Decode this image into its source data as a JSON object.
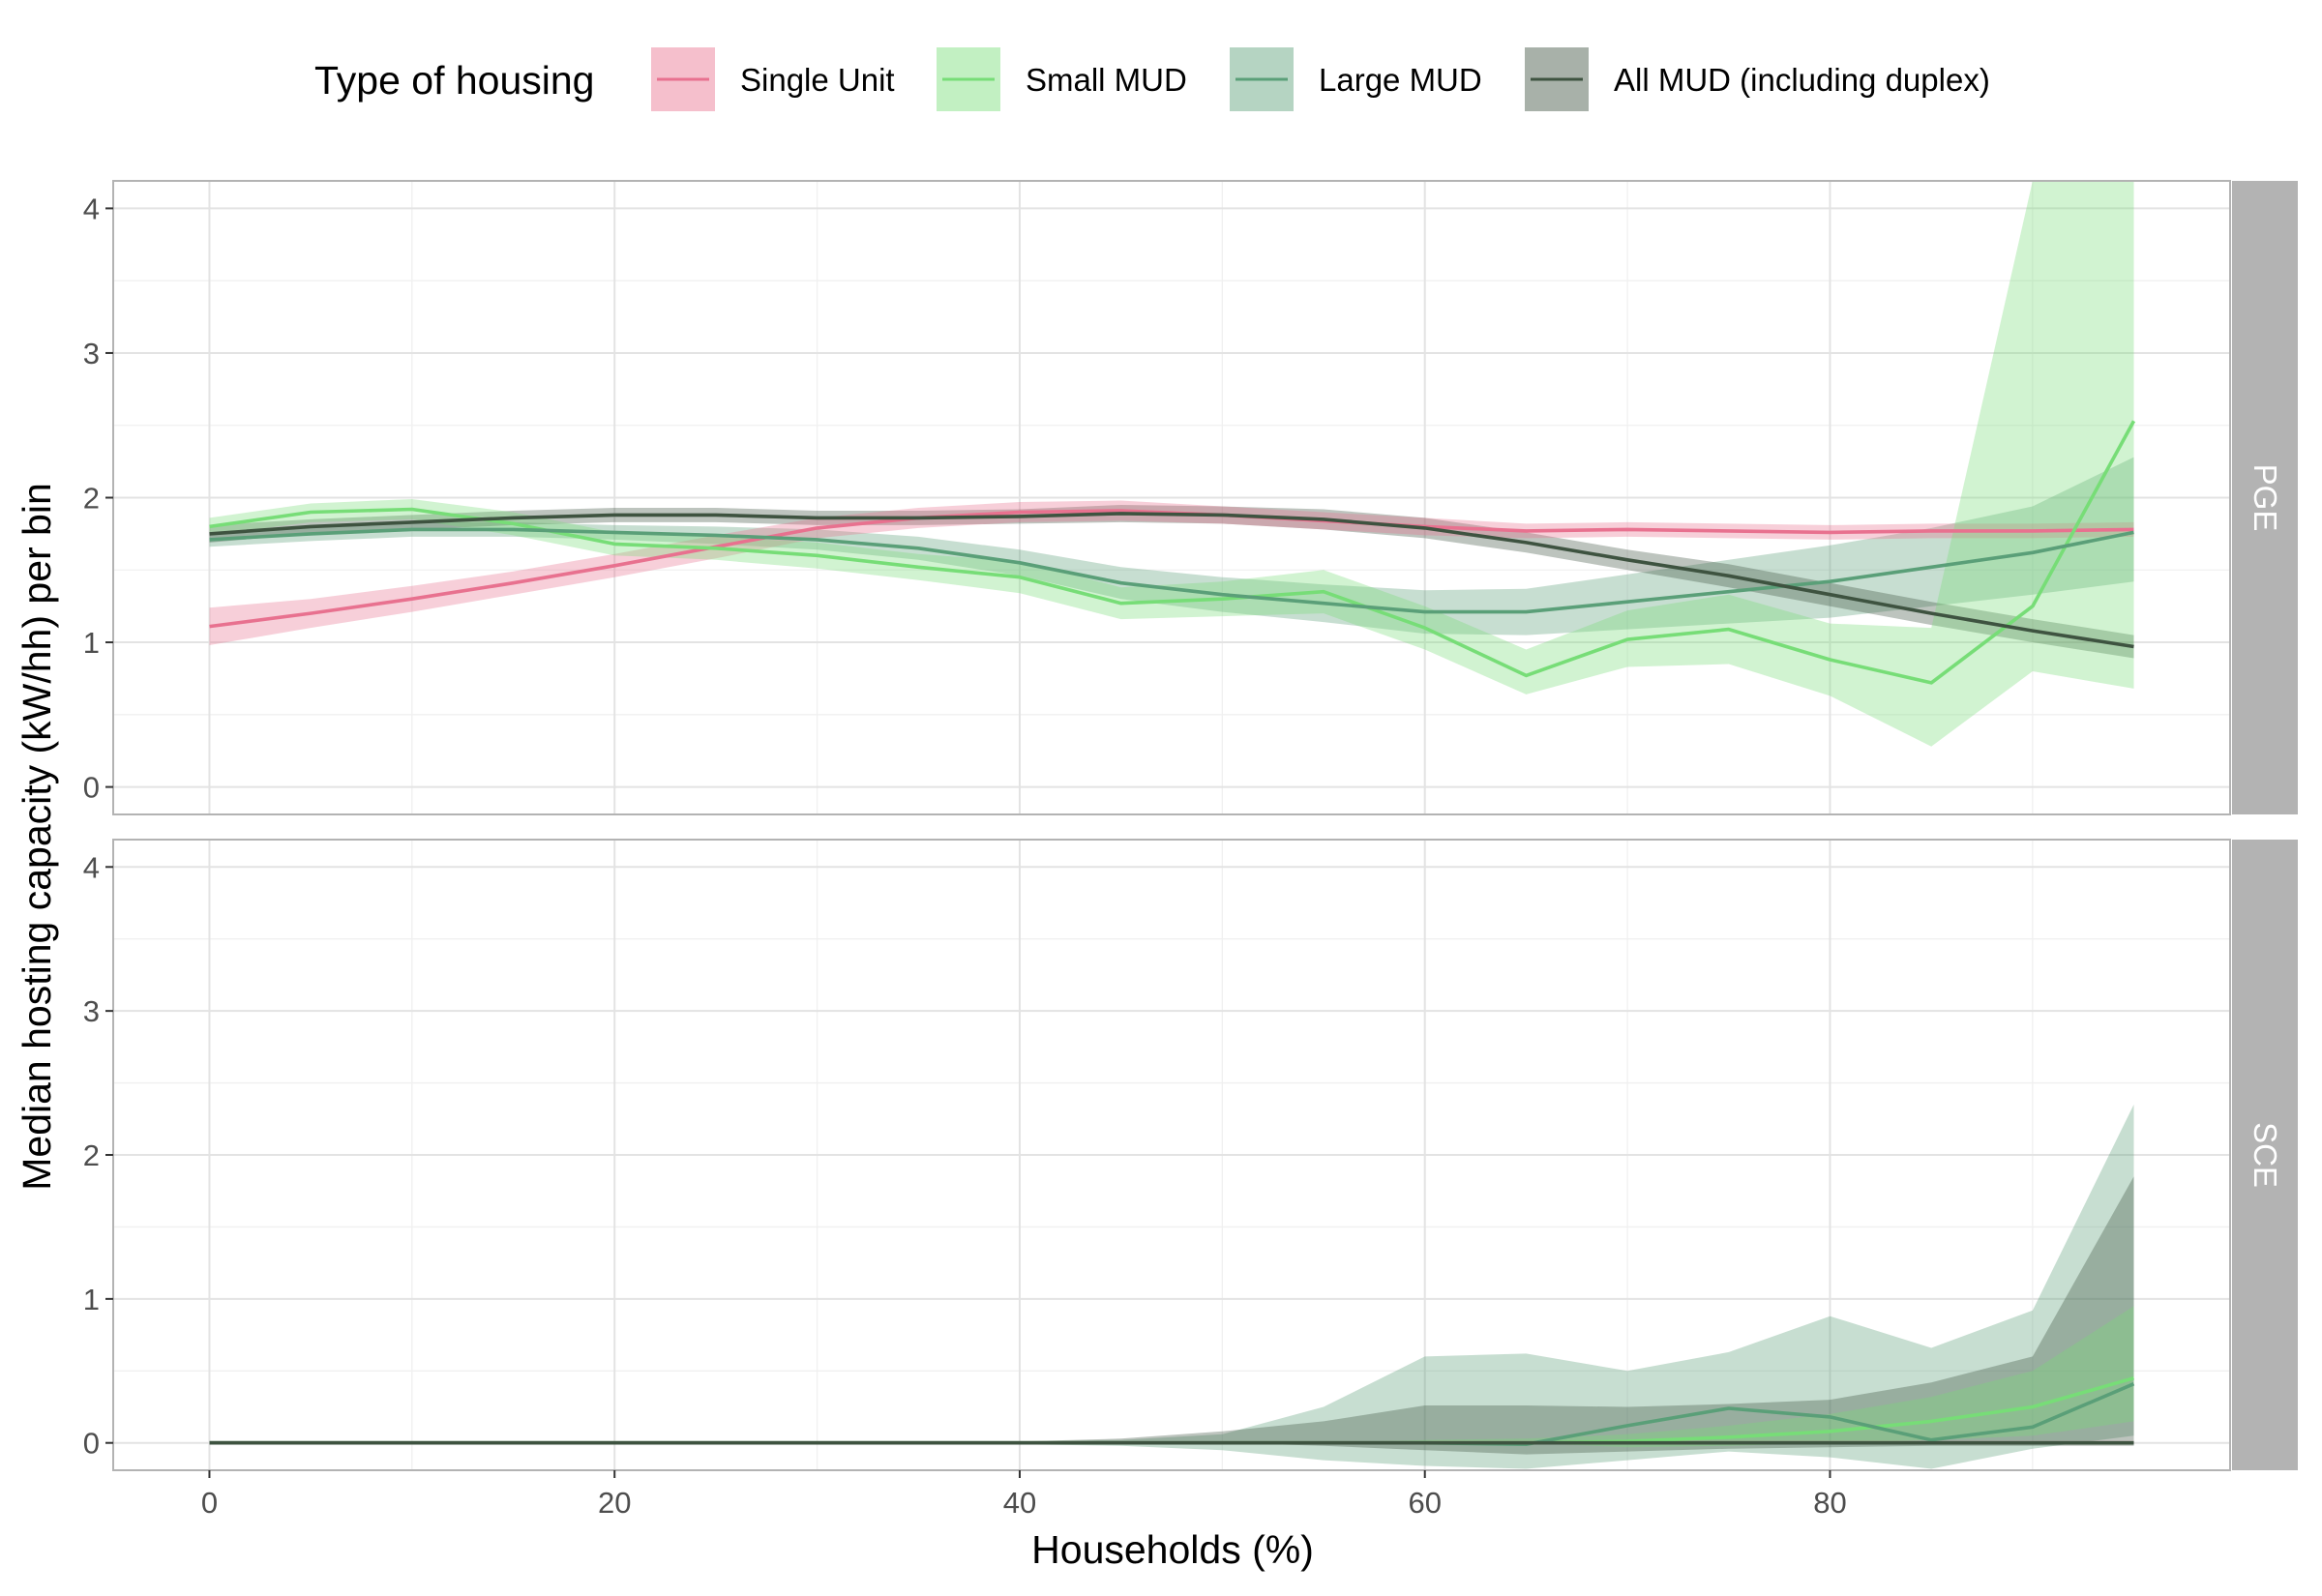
{
  "chart_data": {
    "type": "line",
    "xlabel": "Households (%)",
    "ylabel": "Median hosting capacity (kW/hh) per bin",
    "xlim": [
      -4.75,
      99.75
    ],
    "ylim": [
      -0.19,
      4.19
    ],
    "x_ticks": [
      0,
      20,
      40,
      60,
      80
    ],
    "x_tick_labels": [
      "0",
      "20",
      "40",
      "60",
      "80"
    ],
    "y_ticks": [
      0,
      1,
      2,
      3,
      4
    ],
    "y_tick_labels": [
      "0",
      "1",
      "2",
      "3",
      "4"
    ],
    "grid": true,
    "legend": {
      "title": "Type of housing",
      "position": "top",
      "entries": [
        "Single Unit",
        "Small MUD",
        "Large MUD",
        "All MUD (including duplex)"
      ]
    },
    "colors": {
      "Single Unit": "#e8718f",
      "Small MUD": "#77dd77",
      "Large MUD": "#5a9f78",
      "All MUD (including duplex)": "#3e5340"
    },
    "x": [
      0,
      5,
      10,
      15,
      20,
      25,
      30,
      35,
      40,
      45,
      50,
      55,
      60,
      65,
      70,
      75,
      80,
      85,
      90,
      95
    ],
    "panels": [
      {
        "label": "PGE",
        "series": [
          {
            "name": "Single Unit",
            "values": [
              1.11,
              1.2,
              1.3,
              1.41,
              1.53,
              1.66,
              1.79,
              1.86,
              1.9,
              1.91,
              1.88,
              1.84,
              1.8,
              1.77,
              1.78,
              1.77,
              1.76,
              1.77,
              1.77,
              1.78
            ],
            "lower": [
              0.98,
              1.1,
              1.21,
              1.33,
              1.45,
              1.58,
              1.72,
              1.79,
              1.83,
              1.84,
              1.82,
              1.78,
              1.74,
              1.72,
              1.73,
              1.72,
              1.71,
              1.72,
              1.72,
              1.73
            ],
            "upper": [
              1.24,
              1.3,
              1.39,
              1.49,
              1.61,
              1.74,
              1.86,
              1.93,
              1.97,
              1.98,
              1.94,
              1.9,
              1.86,
              1.82,
              1.83,
              1.82,
              1.81,
              1.82,
              1.82,
              1.83
            ]
          },
          {
            "name": "Small MUD",
            "values": [
              1.8,
              1.9,
              1.92,
              1.82,
              1.68,
              1.65,
              1.6,
              1.52,
              1.45,
              1.27,
              1.3,
              1.35,
              1.1,
              0.77,
              1.02,
              1.09,
              0.88,
              0.72,
              1.25,
              2.53
            ],
            "lower": [
              1.74,
              1.83,
              1.85,
              1.74,
              1.6,
              1.57,
              1.51,
              1.43,
              1.34,
              1.16,
              1.18,
              1.2,
              0.95,
              0.64,
              0.83,
              0.85,
              0.63,
              0.28,
              0.8,
              0.68
            ],
            "upper": [
              1.86,
              1.96,
              1.99,
              1.9,
              1.76,
              1.73,
              1.69,
              1.61,
              1.56,
              1.38,
              1.42,
              1.5,
              1.25,
              0.95,
              1.22,
              1.33,
              1.13,
              1.1,
              4.19,
              4.19
            ]
          },
          {
            "name": "Large MUD",
            "values": [
              1.71,
              1.75,
              1.78,
              1.78,
              1.76,
              1.74,
              1.71,
              1.65,
              1.55,
              1.41,
              1.33,
              1.27,
              1.21,
              1.21,
              1.28,
              1.35,
              1.42,
              1.52,
              1.62,
              1.76
            ],
            "lower": [
              1.66,
              1.7,
              1.73,
              1.73,
              1.71,
              1.68,
              1.64,
              1.57,
              1.46,
              1.3,
              1.21,
              1.14,
              1.06,
              1.05,
              1.09,
              1.13,
              1.17,
              1.25,
              1.33,
              1.42
            ],
            "upper": [
              1.76,
              1.8,
              1.83,
              1.83,
              1.81,
              1.8,
              1.78,
              1.73,
              1.64,
              1.52,
              1.45,
              1.4,
              1.36,
              1.37,
              1.47,
              1.57,
              1.67,
              1.79,
              1.94,
              2.28
            ]
          },
          {
            "name": "All MUD (including duplex)",
            "values": [
              1.75,
              1.8,
              1.83,
              1.86,
              1.88,
              1.88,
              1.86,
              1.86,
              1.87,
              1.89,
              1.88,
              1.85,
              1.79,
              1.69,
              1.57,
              1.46,
              1.33,
              1.2,
              1.08,
              0.97
            ],
            "lower": [
              1.69,
              1.75,
              1.78,
              1.81,
              1.83,
              1.83,
              1.81,
              1.81,
              1.82,
              1.83,
              1.82,
              1.78,
              1.72,
              1.62,
              1.5,
              1.38,
              1.25,
              1.12,
              1.0,
              0.89
            ],
            "upper": [
              1.81,
              1.85,
              1.88,
              1.91,
              1.93,
              1.93,
              1.91,
              1.91,
              1.92,
              1.95,
              1.94,
              1.92,
              1.86,
              1.76,
              1.64,
              1.54,
              1.41,
              1.28,
              1.16,
              1.05
            ]
          }
        ]
      },
      {
        "label": "SCE",
        "series": [
          {
            "name": "Single Unit",
            "values": [
              0,
              0,
              0,
              0,
              0,
              0,
              0,
              0,
              0,
              0,
              0,
              0,
              0,
              0,
              0,
              0,
              0,
              0,
              0,
              0
            ],
            "lower": [
              0,
              0,
              0,
              0,
              0,
              0,
              0,
              0,
              0,
              0,
              0,
              0,
              0,
              0,
              0,
              0,
              0,
              0,
              0,
              0
            ],
            "upper": [
              0,
              0,
              0,
              0,
              0,
              0,
              0,
              0,
              0,
              0,
              0,
              0,
              0,
              0,
              0,
              0,
              0,
              0,
              0,
              0
            ]
          },
          {
            "name": "Small MUD",
            "values": [
              0,
              0,
              0,
              0,
              0,
              0,
              0,
              0,
              0,
              0,
              0,
              0,
              0,
              0,
              0.01,
              0.04,
              0.08,
              0.15,
              0.25,
              0.45
            ],
            "lower": [
              0,
              0,
              0,
              0,
              0,
              0,
              0,
              0,
              0,
              0,
              0,
              0,
              0,
              0,
              -0.03,
              -0.02,
              0,
              0.02,
              0.05,
              0.15
            ],
            "upper": [
              0,
              0,
              0,
              0,
              0,
              0,
              0,
              0,
              0,
              0,
              0,
              0,
              0.02,
              0.03,
              0.06,
              0.12,
              0.2,
              0.32,
              0.5,
              0.95
            ]
          },
          {
            "name": "Large MUD",
            "values": [
              0,
              0,
              0,
              0,
              0,
              0,
              0,
              0,
              0,
              0,
              0,
              0,
              0,
              -0.01,
              0.12,
              0.24,
              0.18,
              0.02,
              0.11,
              0.41
            ],
            "lower": [
              0,
              0,
              0,
              0,
              0,
              0,
              0,
              0,
              -0.01,
              -0.02,
              -0.05,
              -0.12,
              -0.16,
              -0.18,
              -0.12,
              -0.06,
              -0.1,
              -0.18,
              -0.04,
              0.05
            ],
            "upper": [
              0,
              0,
              0,
              0,
              0,
              0,
              0,
              0,
              0.01,
              0.02,
              0.06,
              0.25,
              0.6,
              0.62,
              0.5,
              0.63,
              0.88,
              0.66,
              0.92,
              2.35
            ]
          },
          {
            "name": "All MUD (including duplex)",
            "values": [
              0,
              0,
              0,
              0,
              0,
              0,
              0,
              0,
              0,
              0,
              0,
              0,
              0,
              0,
              0,
              0,
              0,
              0,
              0,
              0
            ],
            "lower": [
              0,
              0,
              0,
              0,
              0,
              0,
              0,
              0,
              0,
              0,
              0,
              -0.02,
              -0.05,
              -0.08,
              -0.06,
              -0.04,
              -0.03,
              -0.02,
              -0.02,
              -0.02
            ],
            "upper": [
              0,
              0,
              0,
              0,
              0,
              0,
              0,
              0,
              0.01,
              0.03,
              0.08,
              0.15,
              0.26,
              0.26,
              0.25,
              0.27,
              0.3,
              0.42,
              0.6,
              1.85
            ]
          }
        ]
      }
    ]
  }
}
